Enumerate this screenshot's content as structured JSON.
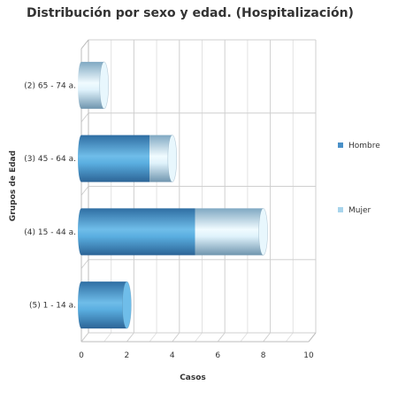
{
  "chart_data": {
    "type": "bar",
    "orientation": "horizontal",
    "stacked": true,
    "style": "3d-cylinder",
    "title": "Distribución por sexo y edad. (Hospitalización)",
    "xlabel": "Casos",
    "ylabel": "Grupos de Edad",
    "categories": [
      "(2) 65 - 74 a.",
      "(3) 45 - 64 a.",
      "(4) 15 - 44 a.",
      "(5) 1 - 14 a."
    ],
    "series": [
      {
        "name": "Hombre",
        "values": [
          0,
          3,
          5,
          2
        ],
        "color": "#4a90c8"
      },
      {
        "name": "Mujer",
        "values": [
          1,
          1,
          3,
          0
        ],
        "color": "#a8d4ec"
      }
    ],
    "xlim": [
      0,
      10
    ],
    "xticks": [
      0,
      2,
      4,
      6,
      8,
      10
    ],
    "grid": true,
    "legend_position": "right"
  }
}
